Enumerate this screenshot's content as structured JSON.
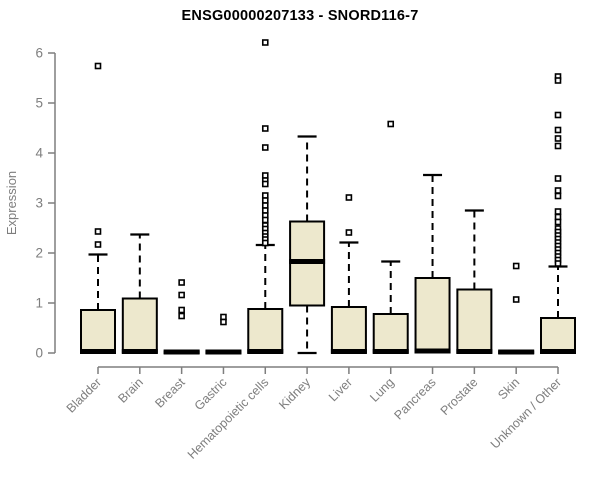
{
  "chart_data": {
    "type": "boxplot",
    "title": "ENSG00000207133 - SNORD116-7",
    "xlabel": "",
    "ylabel": "Expression",
    "y_ticks": [
      0,
      1,
      2,
      3,
      4,
      5,
      6
    ],
    "ylim": [
      0,
      6.4
    ],
    "grid": false,
    "categories": [
      "Bladder",
      "Brain",
      "Breast",
      "Gastric",
      "Hematopoietic cells",
      "Kidney",
      "Liver",
      "Lung",
      "Pancreas",
      "Prostate",
      "Skin",
      "Unknown / Other"
    ],
    "series": [
      {
        "category": "Bladder",
        "q1": 0.01,
        "median": 0.03,
        "q3": 0.86,
        "whisker_low": 0,
        "whisker_high": 1.97,
        "outliers": [
          5.74,
          2.43,
          2.17
        ]
      },
      {
        "category": "Brain",
        "q1": 0.01,
        "median": 0.03,
        "q3": 1.09,
        "whisker_low": 0,
        "whisker_high": 2.37,
        "outliers": []
      },
      {
        "category": "Breast",
        "q1": 0.0,
        "median": 0.02,
        "q3": 0.03,
        "whisker_low": 0,
        "whisker_high": 0.03,
        "outliers": [
          1.41,
          1.16,
          0.86,
          0.74
        ]
      },
      {
        "category": "Gastric",
        "q1": 0.0,
        "median": 0.02,
        "q3": 0.03,
        "whisker_low": 0,
        "whisker_high": 0.03,
        "outliers": [
          0.72,
          0.62
        ]
      },
      {
        "category": "Hematopoietic cells",
        "q1": 0.01,
        "median": 0.03,
        "q3": 0.88,
        "whisker_low": 0,
        "whisker_high": 2.16,
        "outliers": [
          6.21,
          4.49,
          4.11,
          3.55,
          3.45,
          3.38,
          3.15,
          3.05,
          2.95,
          2.85,
          2.75,
          2.66,
          2.55,
          2.48,
          2.4,
          2.33,
          2.27,
          2.2
        ]
      },
      {
        "category": "Kidney",
        "q1": 0.95,
        "median": 1.83,
        "q3": 2.63,
        "whisker_low": 0,
        "whisker_high": 4.33,
        "outliers": []
      },
      {
        "category": "Liver",
        "q1": 0.01,
        "median": 0.03,
        "q3": 0.92,
        "whisker_low": 0,
        "whisker_high": 2.21,
        "outliers": [
          3.11,
          2.41
        ]
      },
      {
        "category": "Lung",
        "q1": 0.01,
        "median": 0.03,
        "q3": 0.78,
        "whisker_low": 0,
        "whisker_high": 1.83,
        "outliers": [
          4.58
        ]
      },
      {
        "category": "Pancreas",
        "q1": 0.01,
        "median": 0.04,
        "q3": 1.5,
        "whisker_low": 0,
        "whisker_high": 3.56,
        "outliers": []
      },
      {
        "category": "Prostate",
        "q1": 0.01,
        "median": 0.03,
        "q3": 1.27,
        "whisker_low": 0,
        "whisker_high": 2.85,
        "outliers": []
      },
      {
        "category": "Skin",
        "q1": 0.0,
        "median": 0.02,
        "q3": 0.03,
        "whisker_low": 0,
        "whisker_high": 0.03,
        "outliers": [
          1.74,
          1.07
        ]
      },
      {
        "category": "Unknown / Other",
        "q1": 0.01,
        "median": 0.03,
        "q3": 0.7,
        "whisker_low": 0,
        "whisker_high": 1.73,
        "outliers": [
          5.53,
          5.45,
          4.76,
          4.46,
          4.29,
          4.14,
          3.49,
          3.25,
          3.14,
          2.83,
          2.72,
          2.62,
          2.49,
          2.42,
          2.35,
          2.28,
          2.21,
          2.14,
          2.07,
          2.0,
          1.93,
          1.86,
          1.79
        ]
      }
    ],
    "colors": {
      "box_fill": "#ede8cd",
      "box_stroke": "#000000",
      "median": "#000000",
      "whisker": "#000000",
      "outlier_stroke": "#000000",
      "outlier_fill": "#ffffff",
      "axis": "#7e7e7e",
      "tick_label": "#7e7e7e",
      "title": "#000000",
      "background": "#ffffff"
    },
    "legend": null
  }
}
